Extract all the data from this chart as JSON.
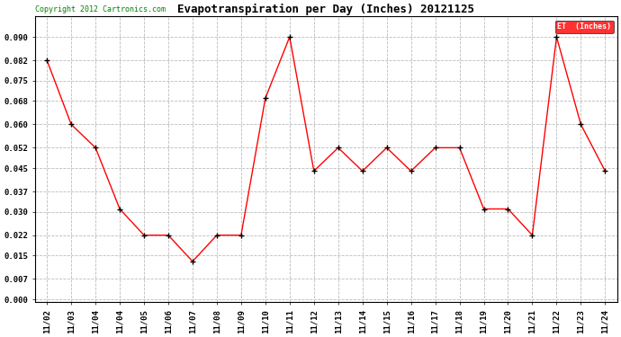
{
  "title": "Evapotranspiration per Day (Inches) 20121125",
  "copyright": "Copyright 2012 Cartronics.com",
  "legend_label": "ET  (Inches)",
  "x_labels": [
    "11/02",
    "11/03",
    "11/04",
    "11/04",
    "11/05",
    "11/06",
    "11/07",
    "11/08",
    "11/09",
    "11/10",
    "11/11",
    "11/12",
    "11/13",
    "11/14",
    "11/15",
    "11/16",
    "11/17",
    "11/18",
    "11/19",
    "11/20",
    "11/21",
    "11/22",
    "11/23",
    "11/24"
  ],
  "y_values": [
    0.082,
    0.06,
    0.052,
    0.031,
    0.022,
    0.022,
    0.013,
    0.022,
    0.022,
    0.069,
    0.09,
    0.044,
    0.052,
    0.044,
    0.052,
    0.044,
    0.052,
    0.052,
    0.031,
    0.031,
    0.022,
    0.09,
    0.06,
    0.044
  ],
  "yticks": [
    0.0,
    0.007,
    0.015,
    0.022,
    0.03,
    0.037,
    0.045,
    0.052,
    0.06,
    0.068,
    0.075,
    0.082,
    0.09
  ],
  "ylim": [
    -0.001,
    0.097
  ],
  "line_color": "red",
  "marker_color": "black",
  "grid_color": "#bbbbbb",
  "bg_color": "#ffffff",
  "title_fontsize": 9,
  "copyright_fontsize": 6,
  "tick_fontsize": 6.5,
  "legend_bg": "red",
  "legend_text_color": "white"
}
